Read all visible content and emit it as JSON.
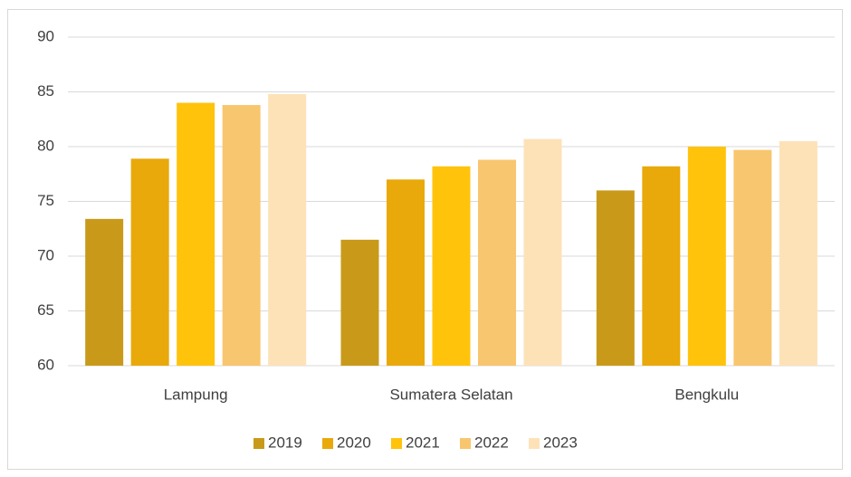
{
  "chart_data": {
    "type": "bar",
    "categories": [
      "Lampung",
      "Sumatera Selatan",
      "Bengkulu"
    ],
    "series": [
      {
        "name": "2019",
        "color": "#c99a1a",
        "values": [
          73.4,
          71.5,
          76.0
        ]
      },
      {
        "name": "2020",
        "color": "#e9a90a",
        "values": [
          78.9,
          77.0,
          78.2
        ]
      },
      {
        "name": "2021",
        "color": "#ffc30c",
        "values": [
          84.0,
          78.2,
          80.0
        ]
      },
      {
        "name": "2022",
        "color": "#f8c66e",
        "values": [
          83.8,
          78.8,
          79.7
        ]
      },
      {
        "name": "2023",
        "color": "#fde2b8",
        "values": [
          84.8,
          80.7,
          80.5
        ]
      }
    ],
    "ylim": [
      60,
      90
    ],
    "yticks": [
      60,
      65,
      70,
      75,
      80,
      85,
      90
    ],
    "grid": true,
    "legend": "bottom"
  }
}
